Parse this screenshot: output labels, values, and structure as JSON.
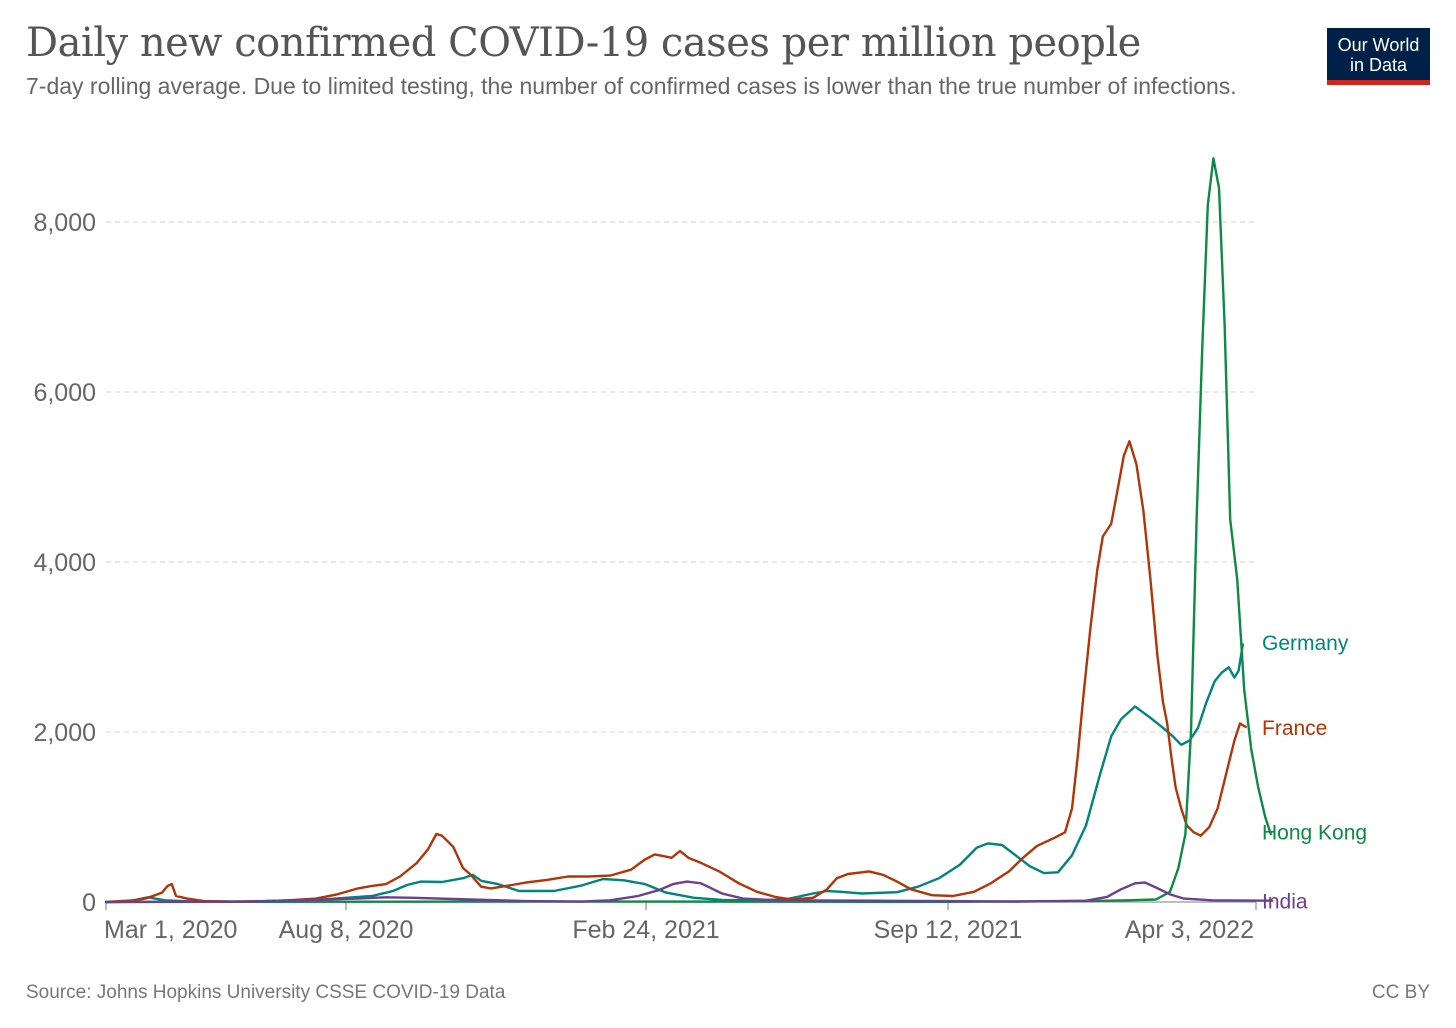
{
  "header": {
    "title": "Daily new confirmed COVID-19 cases per million people",
    "subtitle": "7-day rolling average. Due to limited testing, the number of confirmed cases is lower than the true number of infections."
  },
  "logo": {
    "line1": "Our World",
    "line2": "in Data",
    "bg_color": "#002147",
    "accent_color": "#ce261e"
  },
  "footer": {
    "source": "Source: Johns Hopkins University CSSE COVID-19 Data",
    "license": "CC BY"
  },
  "chart_data": {
    "type": "line",
    "title": "Daily new confirmed COVID-19 cases per million people",
    "xlabel": "",
    "ylabel": "",
    "x_range_days": [
      0,
      775
    ],
    "ylim": [
      0,
      8800
    ],
    "y_ticks": [
      {
        "value": 0,
        "label": "0"
      },
      {
        "value": 2000,
        "label": "2,000"
      },
      {
        "value": 4000,
        "label": "4,000"
      },
      {
        "value": 6000,
        "label": "6,000"
      },
      {
        "value": 8000,
        "label": "8,000"
      }
    ],
    "x_ticks": [
      {
        "day": 50,
        "label": "Mar 1, 2020"
      },
      {
        "day": 210,
        "label": "Aug 8, 2020"
      },
      {
        "day": 410,
        "label": "Feb 24, 2021"
      },
      {
        "day": 610,
        "label": "Sep 12, 2021"
      },
      {
        "day": 813,
        "label": "Apr 3, 2022"
      }
    ],
    "grid": true,
    "legend": "inline labels at series ends (right)",
    "series": [
      {
        "name": "Germany",
        "color": "#00847e",
        "points": [
          [
            0,
            0
          ],
          [
            15,
            5
          ],
          [
            30,
            55
          ],
          [
            42,
            20
          ],
          [
            60,
            8
          ],
          [
            90,
            5
          ],
          [
            120,
            10
          ],
          [
            150,
            25
          ],
          [
            190,
            70
          ],
          [
            205,
            130
          ],
          [
            215,
            200
          ],
          [
            225,
            240
          ],
          [
            240,
            235
          ],
          [
            255,
            280
          ],
          [
            262,
            320
          ],
          [
            268,
            250
          ],
          [
            280,
            210
          ],
          [
            295,
            130
          ],
          [
            320,
            130
          ],
          [
            340,
            195
          ],
          [
            355,
            270
          ],
          [
            370,
            255
          ],
          [
            385,
            210
          ],
          [
            400,
            110
          ],
          [
            420,
            50
          ],
          [
            440,
            25
          ],
          [
            460,
            20
          ],
          [
            485,
            30
          ],
          [
            505,
            100
          ],
          [
            515,
            130
          ],
          [
            525,
            120
          ],
          [
            540,
            100
          ],
          [
            565,
            115
          ],
          [
            580,
            180
          ],
          [
            595,
            280
          ],
          [
            610,
            440
          ],
          [
            622,
            640
          ],
          [
            630,
            690
          ],
          [
            640,
            670
          ],
          [
            660,
            420
          ],
          [
            670,
            340
          ],
          [
            680,
            350
          ],
          [
            690,
            550
          ],
          [
            700,
            900
          ],
          [
            710,
            1500
          ],
          [
            718,
            1950
          ],
          [
            725,
            2150
          ],
          [
            735,
            2300
          ],
          [
            745,
            2180
          ],
          [
            755,
            2050
          ],
          [
            762,
            1950
          ],
          [
            768,
            1850
          ],
          [
            774,
            1900
          ],
          [
            780,
            2050
          ],
          [
            786,
            2350
          ],
          [
            792,
            2600
          ],
          [
            797,
            2700
          ],
          [
            802,
            2760
          ],
          [
            806,
            2640
          ],
          [
            809,
            2720
          ],
          [
            812,
            3030
          ]
        ],
        "label_y": 3060
      },
      {
        "name": "France",
        "color": "#b13507",
        "points": [
          [
            0,
            0
          ],
          [
            10,
            10
          ],
          [
            20,
            20
          ],
          [
            28,
            40
          ],
          [
            35,
            80
          ],
          [
            40,
            110
          ],
          [
            44,
            190
          ],
          [
            47,
            210
          ],
          [
            50,
            70
          ],
          [
            58,
            40
          ],
          [
            70,
            10
          ],
          [
            90,
            5
          ],
          [
            110,
            8
          ],
          [
            130,
            20
          ],
          [
            150,
            40
          ],
          [
            165,
            90
          ],
          [
            180,
            160
          ],
          [
            190,
            190
          ],
          [
            200,
            210
          ],
          [
            210,
            300
          ],
          [
            222,
            460
          ],
          [
            230,
            620
          ],
          [
            236,
            800
          ],
          [
            240,
            780
          ],
          [
            248,
            650
          ],
          [
            255,
            400
          ],
          [
            260,
            330
          ],
          [
            268,
            180
          ],
          [
            275,
            160
          ],
          [
            290,
            200
          ],
          [
            300,
            230
          ],
          [
            315,
            260
          ],
          [
            330,
            300
          ],
          [
            345,
            300
          ],
          [
            360,
            310
          ],
          [
            375,
            380
          ],
          [
            385,
            500
          ],
          [
            392,
            560
          ],
          [
            398,
            540
          ],
          [
            404,
            520
          ],
          [
            410,
            600
          ],
          [
            416,
            520
          ],
          [
            425,
            460
          ],
          [
            438,
            360
          ],
          [
            452,
            220
          ],
          [
            465,
            120
          ],
          [
            478,
            60
          ],
          [
            490,
            30
          ],
          [
            505,
            50
          ],
          [
            515,
            150
          ],
          [
            522,
            280
          ],
          [
            530,
            330
          ],
          [
            545,
            360
          ],
          [
            555,
            320
          ],
          [
            565,
            240
          ],
          [
            575,
            150
          ],
          [
            590,
            80
          ],
          [
            605,
            70
          ],
          [
            620,
            120
          ],
          [
            632,
            220
          ],
          [
            645,
            360
          ],
          [
            655,
            520
          ],
          [
            665,
            660
          ],
          [
            678,
            760
          ],
          [
            685,
            820
          ],
          [
            690,
            1100
          ],
          [
            694,
            1700
          ],
          [
            698,
            2400
          ],
          [
            703,
            3200
          ],
          [
            708,
            3900
          ],
          [
            712,
            4300
          ],
          [
            718,
            4450
          ],
          [
            722,
            4800
          ],
          [
            727,
            5250
          ],
          [
            731,
            5420
          ],
          [
            736,
            5150
          ],
          [
            741,
            4600
          ],
          [
            746,
            3800
          ],
          [
            751,
            2900
          ],
          [
            755,
            2350
          ],
          [
            758,
            2100
          ],
          [
            761,
            1700
          ],
          [
            764,
            1350
          ],
          [
            768,
            1100
          ],
          [
            772,
            900
          ],
          [
            777,
            820
          ],
          [
            782,
            780
          ],
          [
            788,
            880
          ],
          [
            794,
            1100
          ],
          [
            800,
            1500
          ],
          [
            806,
            1900
          ],
          [
            810,
            2100
          ],
          [
            814,
            2060
          ]
        ],
        "label_y": 2060
      },
      {
        "name": "Hong Kong",
        "color": "#0e8a45",
        "points": [
          [
            0,
            0
          ],
          [
            100,
            2
          ],
          [
            200,
            3
          ],
          [
            300,
            5
          ],
          [
            400,
            5
          ],
          [
            500,
            3
          ],
          [
            600,
            2
          ],
          [
            700,
            10
          ],
          [
            730,
            20
          ],
          [
            750,
            30
          ],
          [
            760,
            120
          ],
          [
            766,
            400
          ],
          [
            771,
            800
          ],
          [
            775,
            2000
          ],
          [
            779,
            4500
          ],
          [
            783,
            6500
          ],
          [
            787,
            8200
          ],
          [
            791,
            8750
          ],
          [
            795,
            8400
          ],
          [
            799,
            6800
          ],
          [
            803,
            4500
          ],
          [
            808,
            3800
          ],
          [
            813,
            2500
          ],
          [
            818,
            1800
          ],
          [
            823,
            1350
          ],
          [
            828,
            1000
          ],
          [
            832,
            800
          ]
        ],
        "label_y": 830
      },
      {
        "name": "India",
        "color": "#6d3e91",
        "points": [
          [
            0,
            0
          ],
          [
            100,
            5
          ],
          [
            180,
            40
          ],
          [
            200,
            55
          ],
          [
            220,
            50
          ],
          [
            260,
            30
          ],
          [
            300,
            10
          ],
          [
            340,
            5
          ],
          [
            360,
            20
          ],
          [
            380,
            70
          ],
          [
            395,
            140
          ],
          [
            405,
            210
          ],
          [
            415,
            240
          ],
          [
            425,
            220
          ],
          [
            440,
            100
          ],
          [
            455,
            40
          ],
          [
            480,
            20
          ],
          [
            550,
            15
          ],
          [
            600,
            10
          ],
          [
            650,
            5
          ],
          [
            700,
            15
          ],
          [
            715,
            60
          ],
          [
            725,
            150
          ],
          [
            735,
            220
          ],
          [
            742,
            230
          ],
          [
            750,
            170
          ],
          [
            760,
            90
          ],
          [
            770,
            40
          ],
          [
            790,
            20
          ],
          [
            833,
            15
          ]
        ],
        "label_y": 15
      }
    ]
  }
}
